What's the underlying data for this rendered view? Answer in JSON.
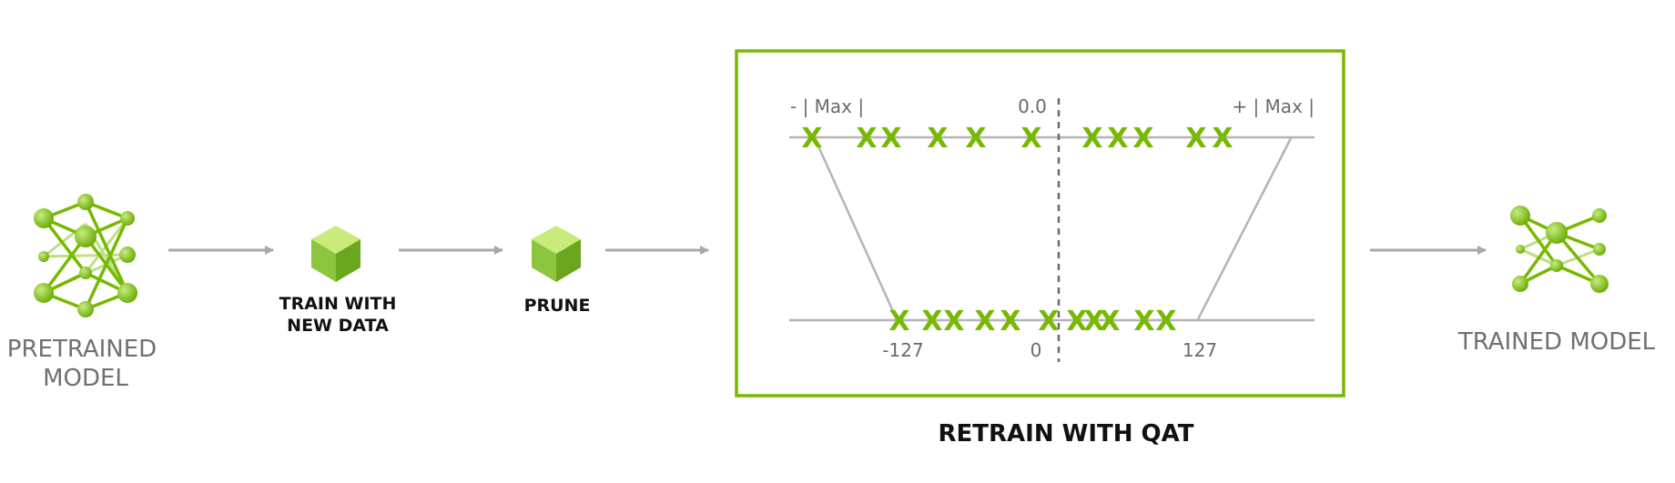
{
  "labels": {
    "pretrained_line1": "PRETRAINED",
    "pretrained_line2": "MODEL",
    "train_line1": "TRAIN WITH",
    "train_line2": "NEW DATA",
    "prune": "PRUNE",
    "retrain": "RETRAIN WITH QAT",
    "trained": "TRAINED MODEL"
  },
  "quant": {
    "neg_max": "- | Max |",
    "zero_float": "0.0",
    "pos_max": "+ | Max |",
    "int_min": "-127",
    "int_zero": "0",
    "int_max": "127",
    "mark": "X"
  },
  "colors": {
    "accent": "#76b900",
    "accent_light": "#a8d85a",
    "arrow": "#a8a8a8",
    "line": "#b4b4b4",
    "frame": "#76b900"
  },
  "icons": {
    "pretrained": "neural-network-icon",
    "train": "cube-icon",
    "prune": "cube-icon",
    "trained": "pruned-network-icon"
  }
}
